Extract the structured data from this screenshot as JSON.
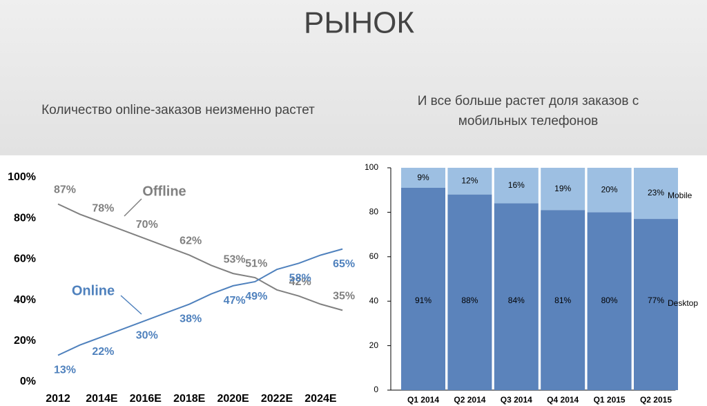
{
  "slide": {
    "title": "РЫНОК"
  },
  "chart_data": [
    {
      "type": "line",
      "title": "Количество online-заказов неизменно растет",
      "categories": [
        "2012",
        null,
        "2014E",
        null,
        "2016E",
        null,
        "2018E",
        null,
        "2020E",
        null,
        "2022E",
        null,
        "2024E",
        null
      ],
      "series": [
        {
          "name": "Offline",
          "color": "#808080",
          "values": [
            87,
            82,
            78,
            74,
            70,
            66,
            62,
            57,
            53,
            51,
            45,
            42,
            38,
            35
          ],
          "value_labels": [
            "87%",
            null,
            "78%",
            null,
            "70%",
            null,
            "62%",
            null,
            "53%",
            "51%",
            null,
            "42%",
            null,
            "35%"
          ]
        },
        {
          "name": "Online",
          "color": "#4f81bd",
          "values": [
            13,
            18,
            22,
            26,
            30,
            34,
            38,
            43,
            47,
            49,
            55,
            58,
            62,
            65
          ],
          "value_labels": [
            "13%",
            null,
            "22%",
            null,
            "30%",
            null,
            "38%",
            null,
            "47%",
            "49%",
            null,
            "58%",
            null,
            "65%"
          ]
        }
      ],
      "ylim": [
        0,
        100
      ],
      "yticks": [
        {
          "value": 0,
          "label": "0%"
        },
        {
          "value": 20,
          "label": "20%"
        },
        {
          "value": 40,
          "label": "40%"
        },
        {
          "value": 60,
          "label": "60%"
        },
        {
          "value": 80,
          "label": "80%"
        },
        {
          "value": 100,
          "label": "100%"
        }
      ]
    },
    {
      "type": "bar",
      "stacked": true,
      "title": [
        "И все больше растет доля заказов с",
        "мобильных телефонов"
      ],
      "categories": [
        "Q1 2014",
        "Q2 2014",
        "Q3 2014",
        "Q4 2014",
        "Q1 2015",
        "Q2 2015"
      ],
      "series": [
        {
          "name": "Desktop",
          "color": "#5b83bb",
          "values": [
            91,
            88,
            84,
            81,
            80,
            77
          ],
          "value_labels": [
            "91%",
            "88%",
            "84%",
            "81%",
            "80%",
            "77%"
          ]
        },
        {
          "name": "Mobile",
          "color": "#9dbfe2",
          "values": [
            9,
            12,
            16,
            19,
            20,
            23
          ],
          "value_labels": [
            "9%",
            "12%",
            "16%",
            "19%",
            "20%",
            "23%"
          ]
        }
      ],
      "ylim": [
        0,
        100
      ],
      "yticks": [
        0,
        20,
        40,
        60,
        80,
        100
      ]
    }
  ]
}
